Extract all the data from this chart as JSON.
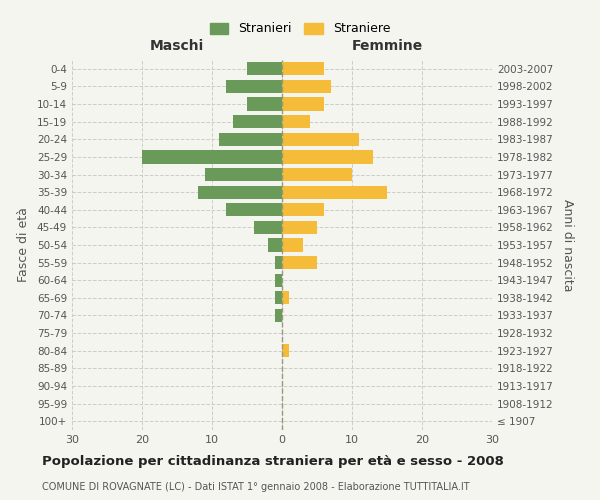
{
  "age_groups": [
    "100+",
    "95-99",
    "90-94",
    "85-89",
    "80-84",
    "75-79",
    "70-74",
    "65-69",
    "60-64",
    "55-59",
    "50-54",
    "45-49",
    "40-44",
    "35-39",
    "30-34",
    "25-29",
    "20-24",
    "15-19",
    "10-14",
    "5-9",
    "0-4"
  ],
  "birth_years": [
    "≤ 1907",
    "1908-1912",
    "1913-1917",
    "1918-1922",
    "1923-1927",
    "1928-1932",
    "1933-1937",
    "1938-1942",
    "1943-1947",
    "1948-1952",
    "1953-1957",
    "1958-1962",
    "1963-1967",
    "1968-1972",
    "1973-1977",
    "1978-1982",
    "1983-1987",
    "1988-1992",
    "1993-1997",
    "1998-2002",
    "2003-2007"
  ],
  "males": [
    0,
    0,
    0,
    0,
    0,
    0,
    1,
    1,
    1,
    1,
    2,
    4,
    8,
    12,
    11,
    20,
    9,
    7,
    5,
    8,
    5
  ],
  "females": [
    0,
    0,
    0,
    0,
    1,
    0,
    0,
    1,
    0,
    5,
    3,
    5,
    6,
    15,
    10,
    13,
    11,
    4,
    6,
    7,
    6
  ],
  "male_color": "#6a9a5a",
  "female_color": "#f5bc3a",
  "background_color": "#f5f5f0",
  "grid_color": "#cccccc",
  "bar_height": 0.75,
  "xlim": 30,
  "title": "Popolazione per cittadinanza straniera per età e sesso - 2008",
  "subtitle": "COMUNE DI ROVAGNATE (LC) - Dati ISTAT 1° gennaio 2008 - Elaborazione TUTTITALIA.IT",
  "xlabel_left": "Maschi",
  "xlabel_right": "Femmine",
  "ylabel_left": "Fasce di età",
  "ylabel_right": "Anni di nascita",
  "legend_male": "Stranieri",
  "legend_female": "Straniere"
}
